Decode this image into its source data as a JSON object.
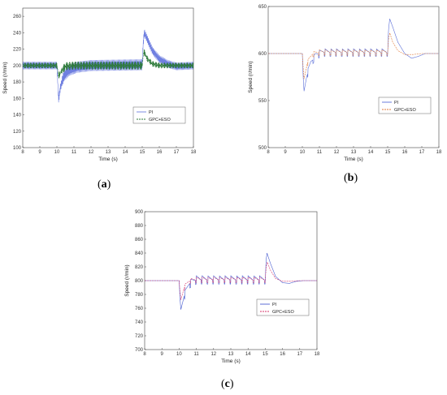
{
  "chart_data": [
    {
      "type": "line",
      "panel_label": "a",
      "xlabel": "Time (s)",
      "ylabel": "Speed (r/min)",
      "xlim": [
        8,
        18
      ],
      "ylim": [
        100,
        270
      ],
      "xticks": [
        8,
        9,
        10,
        11,
        12,
        13,
        14,
        15,
        16,
        17,
        18
      ],
      "yticks": [
        100,
        120,
        140,
        160,
        180,
        200,
        220,
        240,
        260
      ],
      "grid": false,
      "legend_position": "bottom-right",
      "setpoint": 200,
      "load_on_time": 10,
      "load_off_time": 15,
      "series": [
        {
          "name": "PI",
          "color": "#6f7fe0",
          "ripple": 7,
          "ripple_freq": 12,
          "points": [
            [
              8,
              200
            ],
            [
              10,
              200
            ],
            [
              10.05,
              180
            ],
            [
              10.1,
              158
            ],
            [
              10.2,
              173
            ],
            [
              10.4,
              187
            ],
            [
              10.7,
              194
            ],
            [
              11.2,
              198
            ],
            [
              12,
              200
            ],
            [
              15,
              201
            ],
            [
              15.05,
              225
            ],
            [
              15.12,
              240
            ],
            [
              15.3,
              232
            ],
            [
              15.6,
              218
            ],
            [
              16,
              208
            ],
            [
              16.5,
              202
            ],
            [
              17,
              199
            ],
            [
              18,
              200
            ]
          ]
        },
        {
          "name": "GPC+ESO",
          "color": "#2d7a3a",
          "ripple": 5,
          "ripple_freq": 14,
          "points": [
            [
              8,
              200
            ],
            [
              10,
              200
            ],
            [
              10.05,
              195
            ],
            [
              10.1,
              187
            ],
            [
              10.25,
              193
            ],
            [
              10.5,
              199
            ],
            [
              11,
              200
            ],
            [
              15,
              200
            ],
            [
              15.05,
              210
            ],
            [
              15.1,
              217
            ],
            [
              15.3,
              208
            ],
            [
              15.6,
              202
            ],
            [
              16,
              200
            ],
            [
              18,
              200
            ]
          ]
        }
      ]
    },
    {
      "type": "line",
      "panel_label": "b",
      "xlabel": "Time (s)",
      "ylabel": "Speed (r/min)",
      "xlim": [
        8,
        18
      ],
      "ylim": [
        500,
        650
      ],
      "xticks": [
        8,
        9,
        10,
        11,
        12,
        13,
        14,
        15,
        16,
        17,
        18
      ],
      "yticks": [
        500,
        550,
        600,
        650
      ],
      "grid": false,
      "legend_position": "bottom-right",
      "setpoint": 600,
      "load_on_time": 10,
      "load_off_time": 15,
      "series": [
        {
          "name": "PI",
          "color": "#5b6fd8",
          "ripple": 4,
          "ripple_freq": 3,
          "points": [
            [
              8,
              600
            ],
            [
              10,
              600
            ],
            [
              10.05,
              575
            ],
            [
              10.1,
              560
            ],
            [
              10.25,
              575
            ],
            [
              10.5,
              590
            ],
            [
              10.8,
              598
            ],
            [
              11.2,
              601
            ],
            [
              12,
              601
            ],
            [
              15,
              601
            ],
            [
              15.05,
              625
            ],
            [
              15.12,
              637
            ],
            [
              15.3,
              628
            ],
            [
              15.6,
              612
            ],
            [
              16,
              600
            ],
            [
              16.4,
              595
            ],
            [
              16.8,
              597
            ],
            [
              17.2,
              600
            ],
            [
              18,
              600
            ]
          ]
        },
        {
          "name": "GPC+ESO",
          "color": "#e07a3a",
          "ripple": 3,
          "ripple_freq": 3,
          "points": [
            [
              8,
              600
            ],
            [
              10,
              600
            ],
            [
              10.05,
              585
            ],
            [
              10.1,
              573
            ],
            [
              10.3,
              590
            ],
            [
              10.6,
              599
            ],
            [
              11,
              601
            ],
            [
              15,
              601
            ],
            [
              15.05,
              615
            ],
            [
              15.12,
              622
            ],
            [
              15.3,
              612
            ],
            [
              15.6,
              603
            ],
            [
              16,
              599
            ],
            [
              16.5,
              599
            ],
            [
              17,
              600
            ],
            [
              18,
              600
            ]
          ]
        }
      ]
    },
    {
      "type": "line",
      "panel_label": "c",
      "xlabel": "Time (s)",
      "ylabel": "Speed (r/min)",
      "xlim": [
        8,
        18
      ],
      "ylim": [
        700,
        900
      ],
      "xticks": [
        8,
        9,
        10,
        11,
        12,
        13,
        14,
        15,
        16,
        17,
        18
      ],
      "yticks": [
        700,
        720,
        740,
        760,
        780,
        800,
        820,
        840,
        860,
        880,
        900
      ],
      "grid": false,
      "legend_position": "bottom-right",
      "setpoint": 800,
      "load_on_time": 10,
      "load_off_time": 15,
      "series": [
        {
          "name": "PI",
          "color": "#4a5ed0",
          "ripple": 6,
          "ripple_freq": 3,
          "points": [
            [
              8,
              800
            ],
            [
              10,
              800
            ],
            [
              10.05,
              775
            ],
            [
              10.1,
              758
            ],
            [
              10.3,
              778
            ],
            [
              10.6,
              795
            ],
            [
              11,
              801
            ],
            [
              15,
              801
            ],
            [
              15.05,
              830
            ],
            [
              15.1,
              840
            ],
            [
              15.3,
              825
            ],
            [
              15.6,
              806
            ],
            [
              16,
              797
            ],
            [
              16.4,
              796
            ],
            [
              16.8,
              799
            ],
            [
              17.2,
              800
            ],
            [
              18,
              800
            ]
          ]
        },
        {
          "name": "GPC+ESO",
          "color": "#d4336a",
          "ripple": 4,
          "ripple_freq": 3,
          "points": [
            [
              8,
              800
            ],
            [
              10,
              800
            ],
            [
              10.05,
              785
            ],
            [
              10.1,
              772
            ],
            [
              10.3,
              790
            ],
            [
              10.6,
              799
            ],
            [
              11,
              801
            ],
            [
              15,
              801
            ],
            [
              15.05,
              820
            ],
            [
              15.12,
              827
            ],
            [
              15.3,
              815
            ],
            [
              15.6,
              803
            ],
            [
              16,
              799
            ],
            [
              16.5,
              799
            ],
            [
              17,
              800
            ],
            [
              18,
              800
            ]
          ]
        }
      ]
    }
  ]
}
